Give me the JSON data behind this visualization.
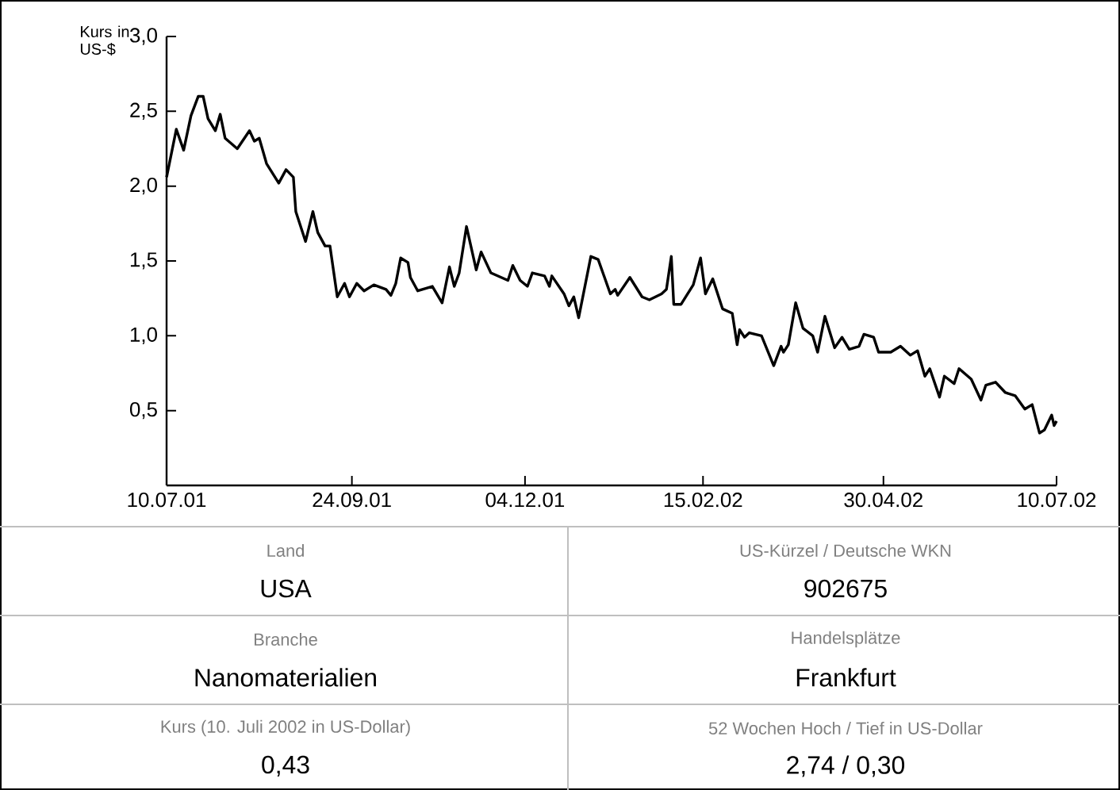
{
  "chart_data": {
    "type": "line",
    "ylabel": "Kurs in US-$",
    "xlim": [
      "2001-07-10",
      "2002-07-10"
    ],
    "xticks": [
      {
        "value": "2001-07-10",
        "label": "10.07.01"
      },
      {
        "value": "2001-09-24",
        "label": "24.09.01"
      },
      {
        "value": "2001-12-04",
        "label": "04.12.01"
      },
      {
        "value": "2002-02-15",
        "label": "15.02.02"
      },
      {
        "value": "2002-04-30",
        "label": "30.04.02"
      },
      {
        "value": "2002-07-10",
        "label": "10.07.02"
      }
    ],
    "ylim": [
      0,
      3
    ],
    "yticks": [
      {
        "value": 0.5,
        "label": "0,5"
      },
      {
        "value": 1.0,
        "label": "1,0"
      },
      {
        "value": 1.5,
        "label": "1,5"
      },
      {
        "value": 2.0,
        "label": "2,0"
      },
      {
        "value": 2.5,
        "label": "2,5"
      },
      {
        "value": 3.0,
        "label": "3,0"
      }
    ],
    "x": [
      "2001-07-10",
      "2001-07-14",
      "2001-07-17",
      "2001-07-20",
      "2001-07-23",
      "2001-07-25",
      "2001-07-27",
      "2001-07-30",
      "2001-08-01",
      "2001-08-03",
      "2001-08-08",
      "2001-08-13",
      "2001-08-15",
      "2001-08-17",
      "2001-08-20",
      "2001-08-25",
      "2001-08-28",
      "2001-08-31",
      "2001-09-01",
      "2001-09-05",
      "2001-09-08",
      "2001-09-10",
      "2001-09-13",
      "2001-09-15",
      "2001-09-18",
      "2001-09-21",
      "2001-09-23",
      "2001-09-26",
      "2001-09-29",
      "2001-10-03",
      "2001-10-08",
      "2001-10-10",
      "2001-10-12",
      "2001-10-14",
      "2001-10-17",
      "2001-10-18",
      "2001-10-21",
      "2001-10-27",
      "2001-10-31",
      "2001-11-03",
      "2001-11-05",
      "2001-11-07",
      "2001-11-10",
      "2001-11-14",
      "2001-11-16",
      "2001-11-20",
      "2001-11-27",
      "2001-11-29",
      "2001-12-02",
      "2001-12-05",
      "2001-12-07",
      "2001-12-12",
      "2001-12-14",
      "2001-12-15",
      "2001-12-20",
      "2001-12-22",
      "2001-12-24",
      "2001-12-26",
      "2001-12-31",
      "2002-01-03",
      "2002-01-08",
      "2002-01-10",
      "2002-01-11",
      "2002-01-16",
      "2002-01-21",
      "2002-01-24",
      "2002-01-29",
      "2002-01-31",
      "2002-02-02",
      "2002-02-03",
      "2002-02-06",
      "2002-02-11",
      "2002-02-14",
      "2002-02-16",
      "2002-02-19",
      "2002-02-23",
      "2002-02-27",
      "2002-03-01",
      "2002-03-02",
      "2002-03-04",
      "2002-03-06",
      "2002-03-11",
      "2002-03-16",
      "2002-03-19",
      "2002-03-20",
      "2002-03-22",
      "2002-03-25",
      "2002-03-28",
      "2002-04-01",
      "2002-04-03",
      "2002-04-06",
      "2002-04-10",
      "2002-04-13",
      "2002-04-16",
      "2002-04-20",
      "2002-04-22",
      "2002-04-26",
      "2002-04-28",
      "2002-05-03",
      "2002-05-07",
      "2002-05-11",
      "2002-05-14",
      "2002-05-17",
      "2002-05-19",
      "2002-05-23",
      "2002-05-25",
      "2002-05-29",
      "2002-05-31",
      "2002-06-05",
      "2002-06-09",
      "2002-06-11",
      "2002-06-15",
      "2002-06-19",
      "2002-06-23",
      "2002-06-27",
      "2002-06-30",
      "2002-07-03",
      "2002-07-05",
      "2002-07-08",
      "2002-07-09",
      "2002-07-10"
    ],
    "series": [
      {
        "color": "#000000",
        "values": [
          2.06,
          2.38,
          2.24,
          2.47,
          2.6,
          2.6,
          2.45,
          2.37,
          2.48,
          2.32,
          2.25,
          2.37,
          2.3,
          2.32,
          2.15,
          2.02,
          2.11,
          2.06,
          1.83,
          1.63,
          1.83,
          1.69,
          1.6,
          1.6,
          1.26,
          1.35,
          1.26,
          1.35,
          1.3,
          1.34,
          1.31,
          1.27,
          1.35,
          1.52,
          1.49,
          1.39,
          1.3,
          1.33,
          1.22,
          1.46,
          1.33,
          1.42,
          1.73,
          1.44,
          1.56,
          1.42,
          1.37,
          1.47,
          1.37,
          1.33,
          1.42,
          1.4,
          1.33,
          1.4,
          1.28,
          1.2,
          1.26,
          1.12,
          1.53,
          1.51,
          1.28,
          1.31,
          1.27,
          1.39,
          1.26,
          1.24,
          1.28,
          1.31,
          1.53,
          1.21,
          1.21,
          1.34,
          1.52,
          1.28,
          1.38,
          1.18,
          1.15,
          0.94,
          1.04,
          0.99,
          1.02,
          1.0,
          0.8,
          0.93,
          0.89,
          0.94,
          1.22,
          1.05,
          1.0,
          0.89,
          1.13,
          0.92,
          0.99,
          0.91,
          0.93,
          1.01,
          0.99,
          0.89,
          0.89,
          0.93,
          0.87,
          0.9,
          0.73,
          0.78,
          0.59,
          0.73,
          0.68,
          0.78,
          0.71,
          0.57,
          0.67,
          0.69,
          0.62,
          0.6,
          0.51,
          0.54,
          0.35,
          0.37,
          0.47,
          0.4,
          0.43
        ]
      }
    ],
    "annotations": [
      "Land",
      "USA",
      "US-Kürzel / Deutsche WKN",
      "902675",
      "Branche",
      "Nanomaterialien",
      "Handelsplätze",
      "Frankfurt",
      "Kurs (10. Juli 2002 in US-Dollar)",
      "0,43",
      "52 Wochen Hoch / Tief in US-Dollar",
      "2,74 / 0,30"
    ]
  }
}
